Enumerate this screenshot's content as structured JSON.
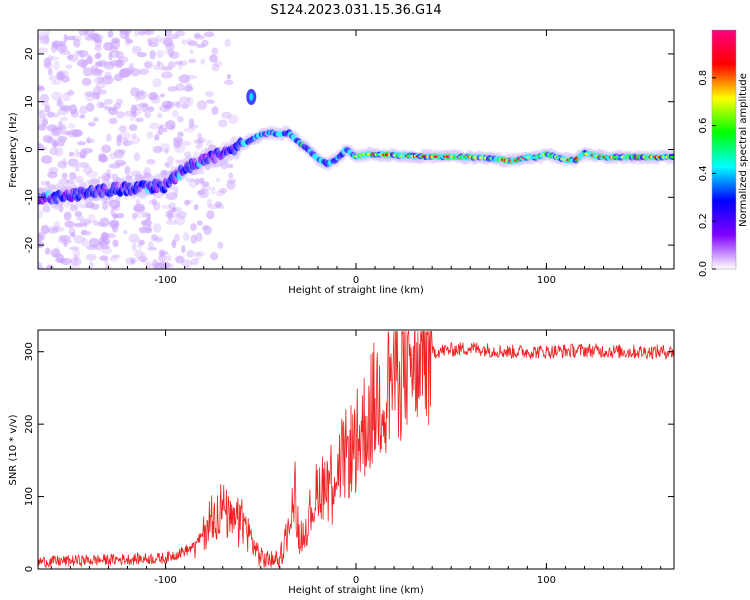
{
  "title": "S124.2023.031.15.36.G14",
  "chart_data": [
    {
      "type": "heatmap",
      "xlabel": "Height of straight line (km)",
      "ylabel": "Frequency (Hz)",
      "xlim": [
        -167,
        167
      ],
      "ylim": [
        -25,
        25
      ],
      "xticks": [
        -100,
        0,
        100
      ],
      "yticks": [
        -20,
        -10,
        0,
        10,
        20
      ],
      "colorbar": {
        "label": "Normalized spectral amplitude",
        "range": [
          0,
          1
        ],
        "ticks": [
          "0.0",
          "0.2",
          "0.4",
          "0.6",
          "0.8"
        ],
        "colors": [
          "#ffffff",
          "#8000ff",
          "#0000ff",
          "#00ffff",
          "#00ff00",
          "#ffff00",
          "#ff0000",
          "#ff0080"
        ]
      },
      "ridge": {
        "x": [
          -167,
          -150,
          -130,
          -115,
          -100,
          -90,
          -80,
          -70,
          -60,
          -55,
          -50,
          -45,
          -40,
          -35,
          -30,
          -25,
          -20,
          -15,
          -10,
          -5,
          0,
          5,
          10,
          20,
          30,
          40,
          50,
          60,
          70,
          75,
          80,
          85,
          90,
          95,
          100,
          105,
          110,
          115,
          120,
          130,
          150,
          167
        ],
        "y": [
          -10.5,
          -9.5,
          -8.5,
          -8,
          -7.5,
          -4,
          -2,
          -1,
          1,
          2,
          3,
          3.5,
          3.2,
          3.5,
          1.5,
          0,
          -2,
          -3,
          -2,
          0,
          -1.5,
          -1,
          -1,
          -1.2,
          -1.4,
          -1.5,
          -1.5,
          -1.6,
          -1.8,
          -2,
          -2.3,
          -2.3,
          -1.6,
          -1.7,
          -1,
          -1.5,
          -2.1,
          -2.3,
          -0.8,
          -1.6,
          -1.6,
          -1.6
        ]
      },
      "side_feature": {
        "x": -55,
        "y": 11
      }
    },
    {
      "type": "line",
      "xlabel": "Height of straight line (km)",
      "ylabel": "SNR (10 * v/v)",
      "xlim": [
        -167,
        167
      ],
      "ylim": [
        0,
        330
      ],
      "xticks": [
        -100,
        0,
        100
      ],
      "yticks": [
        0,
        100,
        200,
        300
      ],
      "color": "#ee2222",
      "envelope": {
        "x": [
          -167,
          -100,
          -85,
          -80,
          -75,
          -70,
          -65,
          -60,
          -55,
          -50,
          -45,
          -40,
          -35,
          -32,
          -30,
          -25,
          -20,
          -10,
          0,
          10,
          20,
          30,
          40,
          60,
          80,
          100,
          120,
          140,
          167
        ],
        "y": [
          10,
          15,
          30,
          50,
          80,
          85,
          60,
          70,
          40,
          15,
          12,
          15,
          60,
          120,
          40,
          70,
          110,
          140,
          175,
          230,
          275,
          295,
          300,
          305,
          300,
          300,
          302,
          300,
          300
        ]
      }
    }
  ]
}
